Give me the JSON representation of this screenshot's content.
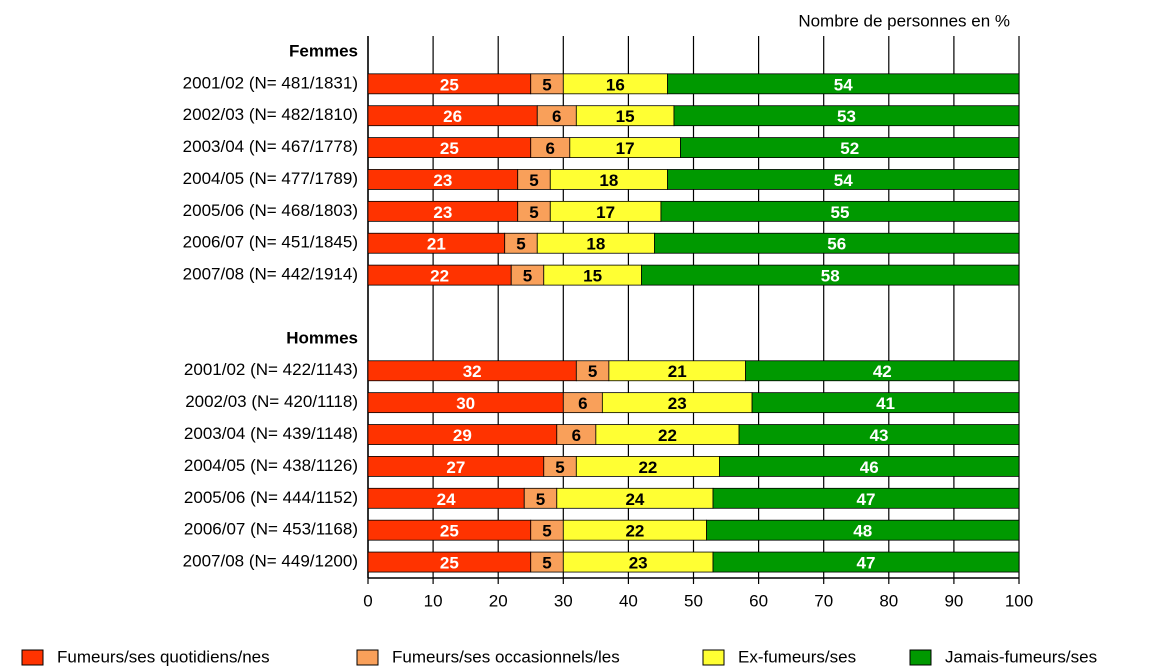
{
  "chart_data": {
    "type": "stacked-barh",
    "title": "Nombre de personnes en %",
    "categories": [
      "Femmes",
      "2001/02 (N= 481/1831)",
      "2002/03 (N= 482/1810)",
      "2003/04 (N= 467/1778)",
      "2004/05 (N= 477/1789)",
      "2005/06 (N= 468/1803)",
      "2006/07 (N= 451/1845)",
      "2007/08 (N= 442/1914)",
      null,
      "Hommes",
      "2001/02 (N= 422/1143)",
      "2002/03 (N= 420/1118)",
      "2003/04 (N= 439/1148)",
      "2004/05 (N= 438/1126)",
      "2005/06 (N= 444/1152)",
      "2006/07 (N= 453/1168)",
      "2007/08 (N= 449/1200)"
    ],
    "series": [
      {
        "name": "Fumeurs/ses quotidiens/nes",
        "color": "#ff3300",
        "label_color": "#ffffff",
        "values": [
          null,
          25,
          26,
          25,
          23,
          23,
          21,
          22,
          null,
          null,
          32,
          30,
          29,
          27,
          24,
          25,
          25
        ]
      },
      {
        "name": "Fumeurs/ses occasionnels/les",
        "color": "#f9a05a",
        "label_color": "#000000",
        "values": [
          null,
          5,
          6,
          6,
          5,
          5,
          5,
          5,
          null,
          null,
          5,
          6,
          6,
          5,
          5,
          5,
          5
        ]
      },
      {
        "name": "Ex-fumeurs/ses",
        "color": "#ffff33",
        "label_color": "#000000",
        "values": [
          null,
          16,
          15,
          17,
          18,
          17,
          18,
          15,
          null,
          null,
          21,
          23,
          22,
          22,
          24,
          22,
          23
        ]
      },
      {
        "name": "Jamais-fumeurs/ses",
        "color": "#009900",
        "label_color": "#ffffff",
        "values": [
          null,
          54,
          53,
          52,
          54,
          55,
          56,
          58,
          null,
          null,
          42,
          41,
          43,
          46,
          47,
          48,
          47
        ]
      }
    ],
    "xlim": [
      0,
      100
    ],
    "xticks": [
      0,
      10,
      20,
      30,
      40,
      50,
      60,
      70,
      80,
      90,
      100
    ],
    "grid": true,
    "legend": "bottom"
  }
}
